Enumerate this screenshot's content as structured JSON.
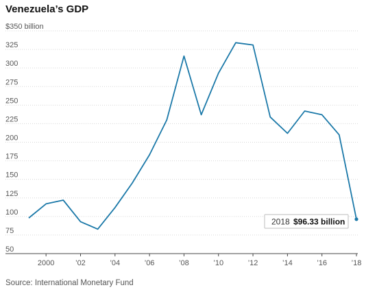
{
  "chart_data": {
    "type": "line",
    "title": "Venezuela’s GDP",
    "ylabel": "$350 billion",
    "ylim": [
      50,
      350
    ],
    "y_ticks": [
      {
        "value": 350,
        "label": ""
      },
      {
        "value": 325,
        "label": "325"
      },
      {
        "value": 300,
        "label": "300"
      },
      {
        "value": 275,
        "label": "275"
      },
      {
        "value": 250,
        "label": "250"
      },
      {
        "value": 225,
        "label": "225"
      },
      {
        "value": 200,
        "label": "200"
      },
      {
        "value": 175,
        "label": "175"
      },
      {
        "value": 150,
        "label": "150"
      },
      {
        "value": 125,
        "label": "125"
      },
      {
        "value": 100,
        "label": "100"
      },
      {
        "value": 75,
        "label": "75"
      },
      {
        "value": 50,
        "label": "50"
      }
    ],
    "x_ticks": [
      {
        "value": 2000,
        "label": "2000"
      },
      {
        "value": 2002,
        "label": "’02"
      },
      {
        "value": 2004,
        "label": "’04"
      },
      {
        "value": 2006,
        "label": "’06"
      },
      {
        "value": 2008,
        "label": "’08"
      },
      {
        "value": 2010,
        "label": "’10"
      },
      {
        "value": 2012,
        "label": "’12"
      },
      {
        "value": 2014,
        "label": "’14"
      },
      {
        "value": 2016,
        "label": "’16"
      },
      {
        "value": 2018,
        "label": "’18"
      }
    ],
    "xlim": [
      1998.8,
      2018.2
    ],
    "x": [
      1999,
      2000,
      2001,
      2002,
      2003,
      2004,
      2005,
      2006,
      2007,
      2008,
      2009,
      2010,
      2011,
      2012,
      2013,
      2014,
      2015,
      2016,
      2017,
      2018
    ],
    "series": [
      {
        "color": "#1a78a8",
        "values": [
          98,
          117,
          122,
          93,
          83,
          112,
          145,
          183,
          230,
          316,
          237,
          293,
          334,
          331,
          234,
          212,
          242,
          237,
          210,
          96.33
        ]
      }
    ],
    "annotation": {
      "year": "2018",
      "value_text": "$96.33 billion"
    },
    "grid": true,
    "source": "Source: International Monetary Fund"
  }
}
